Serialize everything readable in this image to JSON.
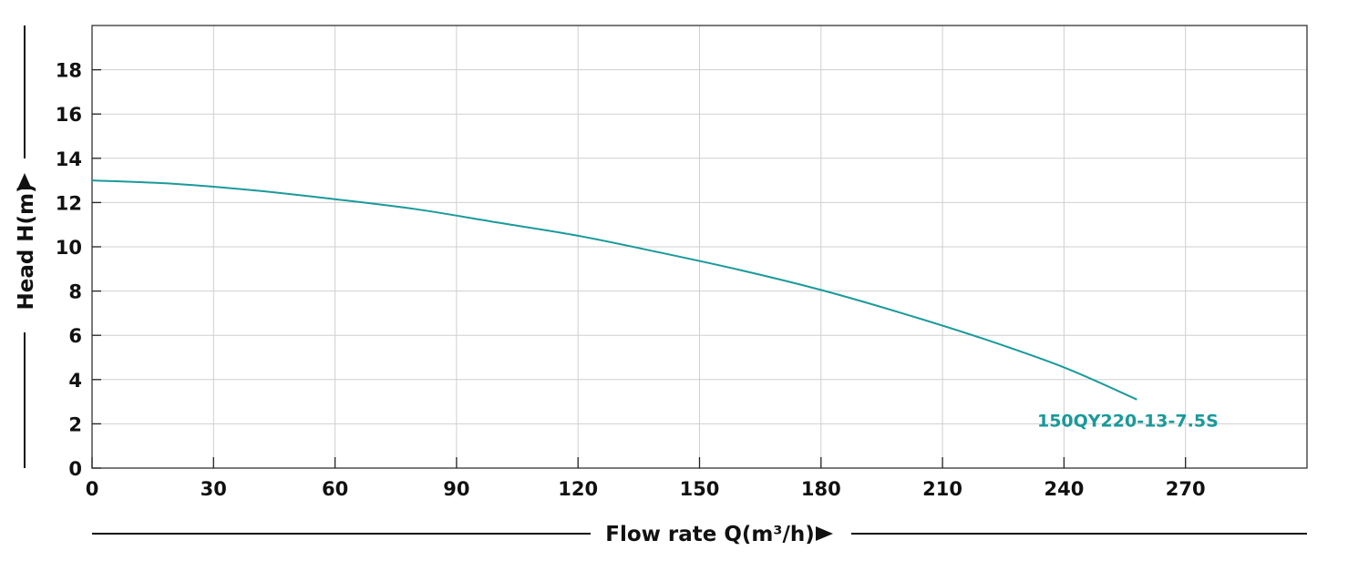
{
  "chart_data": {
    "type": "line",
    "xlabel": "Flow rate Q(m³/h)",
    "ylabel": "Head H(m)",
    "x_ticks": [
      0,
      30,
      60,
      90,
      120,
      150,
      180,
      210,
      240,
      270
    ],
    "y_ticks": [
      0,
      2,
      4,
      6,
      8,
      10,
      12,
      14,
      16,
      18
    ],
    "xlim": [
      0,
      300
    ],
    "ylim": [
      0,
      20
    ],
    "grid": true,
    "series": [
      {
        "name": "150QY220-13-7.5S",
        "color": "#1a9a9a",
        "x": [
          0,
          20,
          40,
          60,
          80,
          100,
          120,
          140,
          160,
          180,
          200,
          220,
          240,
          258
        ],
        "y": [
          13.0,
          12.85,
          12.55,
          12.15,
          11.7,
          11.1,
          10.5,
          9.75,
          8.95,
          8.05,
          7.0,
          5.85,
          4.55,
          3.1
        ]
      }
    ]
  }
}
